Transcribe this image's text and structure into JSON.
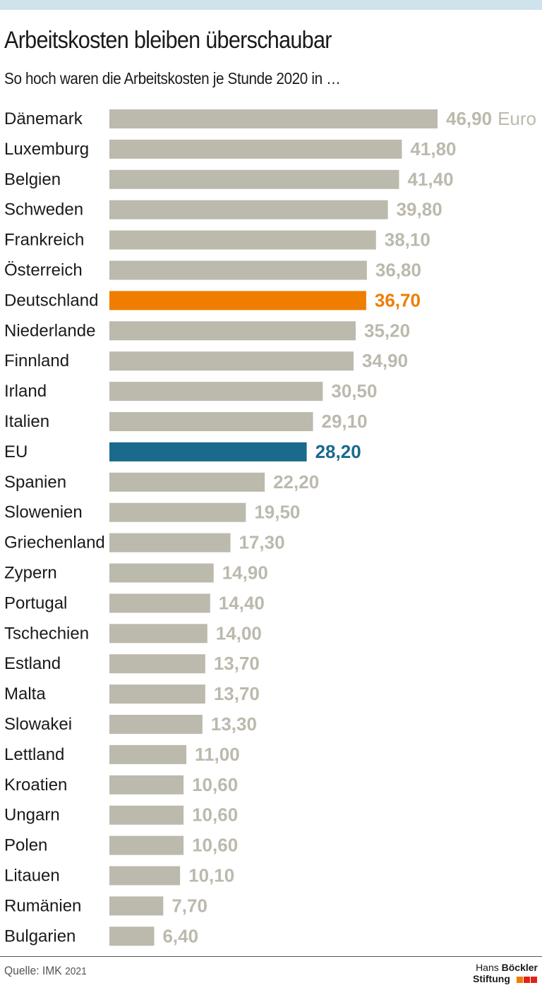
{
  "header": {
    "title": "Arbeitskosten bleiben überschaubar",
    "subtitle": "So hoch waren die Arbeitskosten je Stunde 2020 in …"
  },
  "footer": {
    "source_label": "Quelle: IMK",
    "source_year": "2021",
    "logo_line1_a": "Hans",
    "logo_line1_b": "Böckler",
    "logo_line2": "Stiftung"
  },
  "colors": {
    "default_bar": "#bcb9ad",
    "germany": "#ef7d00",
    "eu": "#1a6a8c",
    "default_label": "#bcb9ad",
    "category_text": "#1a1a1a",
    "logo_orange": "#ef7d00",
    "logo_red": "#e2231a"
  },
  "chart_data": {
    "type": "bar",
    "orientation": "horizontal",
    "unit_label": "Euro",
    "categories": [
      "Dänemark",
      "Luxemburg",
      "Belgien",
      "Schweden",
      "Frankreich",
      "Österreich",
      "Deutschland",
      "Niederlande",
      "Finnland",
      "Irland",
      "Italien",
      "EU",
      "Spanien",
      "Slowenien",
      "Griechenland",
      "Zypern",
      "Portugal",
      "Tschechien",
      "Estland",
      "Malta",
      "Slowakei",
      "Lettland",
      "Kroatien",
      "Ungarn",
      "Polen",
      "Litauen",
      "Rumänien",
      "Bulgarien"
    ],
    "values": [
      46.9,
      41.8,
      41.4,
      39.8,
      38.1,
      36.8,
      36.7,
      35.2,
      34.9,
      30.5,
      29.1,
      28.2,
      22.2,
      19.5,
      17.3,
      14.9,
      14.4,
      14.0,
      13.7,
      13.7,
      13.3,
      11.0,
      10.6,
      10.6,
      10.6,
      10.1,
      7.7,
      6.4
    ],
    "labels": [
      "46,90",
      "41,80",
      "41,40",
      "39,80",
      "38,10",
      "36,80",
      "36,70",
      "35,20",
      "34,90",
      "30,50",
      "29,10",
      "28,20",
      "22,20",
      "19,50",
      "17,30",
      "14,90",
      "14,40",
      "14,00",
      "13,70",
      "13,70",
      "13,30",
      "11,00",
      "10,60",
      "10,60",
      "10,60",
      "10,10",
      "7,70",
      "6,40"
    ],
    "highlights": {
      "Deutschland": "germany",
      "EU": "eu"
    },
    "xlim": [
      0,
      46.9
    ],
    "grid": false,
    "legend": "none"
  }
}
